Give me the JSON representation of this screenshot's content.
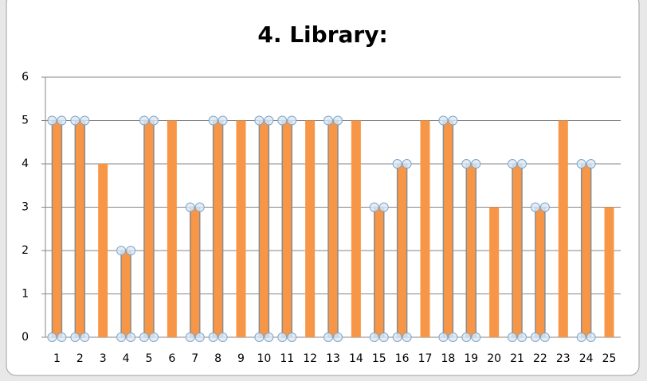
{
  "chart_data": {
    "type": "bar",
    "title": "4. Library:",
    "categories": [
      "1",
      "2",
      "3",
      "4",
      "5",
      "6",
      "7",
      "8",
      "9",
      "10",
      "11",
      "12",
      "13",
      "14",
      "15",
      "16",
      "17",
      "18",
      "19",
      "20",
      "21",
      "22",
      "23",
      "24",
      "25"
    ],
    "values": [
      5,
      5,
      4,
      2,
      5,
      5,
      3,
      5,
      5,
      5,
      5,
      5,
      5,
      5,
      3,
      4,
      5,
      5,
      4,
      3,
      4,
      3,
      5,
      4,
      3
    ],
    "selected": [
      true,
      true,
      false,
      true,
      true,
      false,
      true,
      true,
      false,
      true,
      true,
      false,
      true,
      false,
      true,
      true,
      false,
      true,
      true,
      false,
      true,
      true,
      false,
      true,
      false
    ],
    "color": "#f79646",
    "ylim": [
      0,
      6
    ],
    "yticks": [
      0,
      1,
      2,
      3,
      4,
      5,
      6
    ],
    "grid": true
  }
}
